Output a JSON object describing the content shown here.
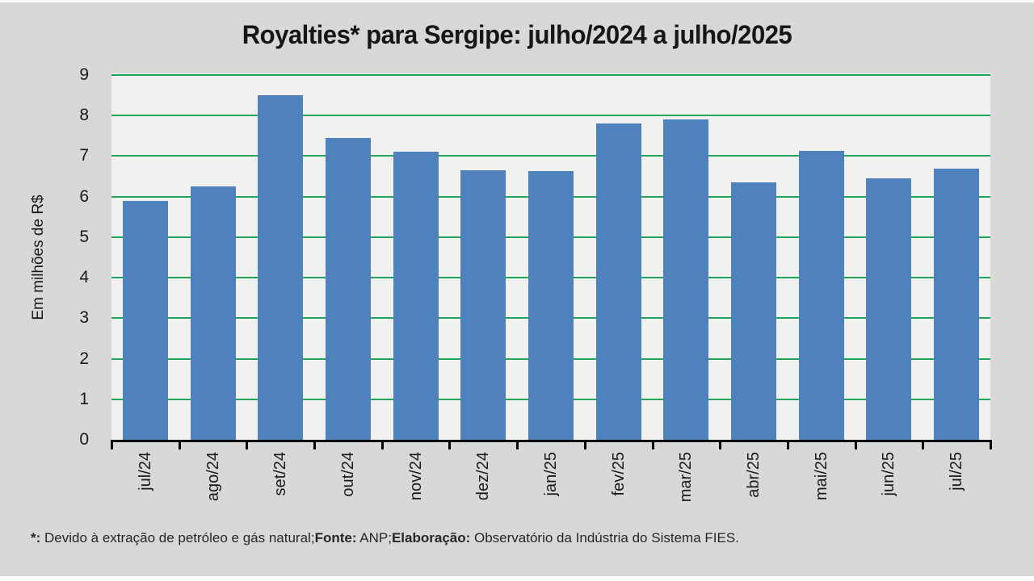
{
  "colors": {
    "slide_background": "#D8D8D8",
    "plot_background": "#F1F2F0",
    "bar_color": "#4F81BD",
    "gridline_color": "#22A45B",
    "axis_color": "#000000",
    "title_color": "#161616"
  },
  "chart_data": {
    "type": "bar",
    "title": "Royalties* para Sergipe: julho/2024 a julho/2025",
    "categories": [
      "jul/24",
      "ago/24",
      "set/24",
      "out/24",
      "nov/24",
      "dez/24",
      "jan/25",
      "fev/25",
      "mar/25",
      "abr/25",
      "mai/25",
      "jun/25",
      "jul/25"
    ],
    "values": [
      5.9,
      6.25,
      8.5,
      7.45,
      7.1,
      6.65,
      6.63,
      7.8,
      7.9,
      6.35,
      7.13,
      6.45,
      6.7
    ],
    "xlabel": "",
    "ylabel": "Em milhões de R$",
    "ylim": [
      0,
      9
    ],
    "yticks": [
      0,
      1,
      2,
      3,
      4,
      5,
      6,
      7,
      8,
      9
    ],
    "grid": true,
    "legend": false
  },
  "footnote": {
    "segments": [
      {
        "text": "*:",
        "bold": true
      },
      {
        "text": " Devido à extração de petróleo e gás natural;",
        "bold": false
      },
      {
        "text": "Fonte:",
        "bold": true
      },
      {
        "text": " ANP;",
        "bold": false
      },
      {
        "text": "Elaboração:",
        "bold": true
      },
      {
        "text": " Observatório da Indústria do Sistema FIES.",
        "bold": false
      }
    ]
  }
}
